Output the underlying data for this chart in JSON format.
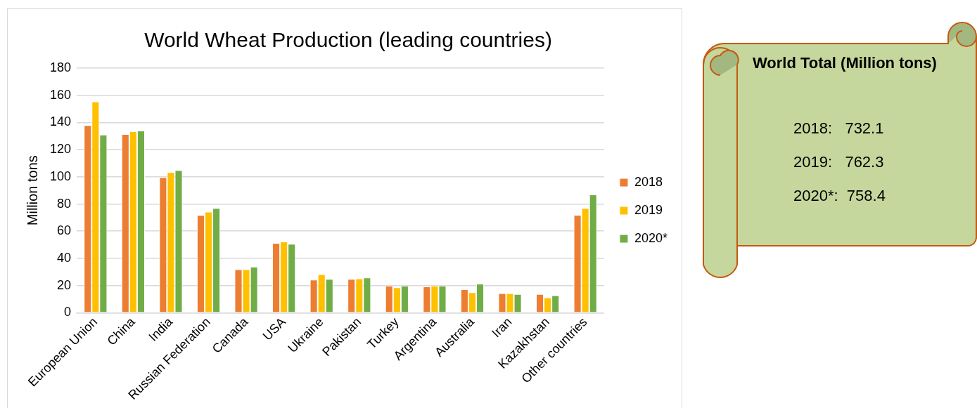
{
  "chart_data": [
    {
      "type": "bar",
      "title": "World Wheat Production (leading countries)",
      "ylabel": "Million tons",
      "categories": [
        "European Union",
        "China",
        "India",
        "Russian Federation",
        "Canada",
        "USA",
        "Ukraine",
        "Pakistan",
        "Turkey",
        "Argentina",
        "Australia",
        "Iran",
        "Kazakhstan",
        "Other countries"
      ],
      "series": [
        {
          "name": "2018",
          "color": "#ed7d31",
          "values": [
            138,
            131.4,
            99.8,
            71.9,
            32,
            51.3,
            24.4,
            24.8,
            19.9,
            19.3,
            17.2,
            14.4,
            13.8,
            72
          ]
        },
        {
          "name": "2019",
          "color": "#ffc000",
          "values": [
            155.4,
            133.5,
            103.5,
            74.3,
            32,
            52.4,
            28.3,
            25.2,
            18.7,
            19.9,
            15,
            14.4,
            11.3,
            77
          ]
        },
        {
          "name": "2020*",
          "color": "#70ad47",
          "values": [
            131,
            134,
            105,
            77,
            33.9,
            50.7,
            24.8,
            25.9,
            19.9,
            19.9,
            21.4,
            13.8,
            12.9,
            87
          ]
        }
      ],
      "ylim": [
        0,
        180
      ],
      "yticks": [
        0,
        20,
        40,
        60,
        80,
        100,
        120,
        140,
        160,
        180
      ],
      "grid": "y",
      "legend": "right"
    },
    {
      "type": "other",
      "title": "World Total (Million tons)",
      "annotations": [
        "2018:   732.1",
        "2019:   762.3",
        "2020*:  758.4"
      ]
    }
  ]
}
